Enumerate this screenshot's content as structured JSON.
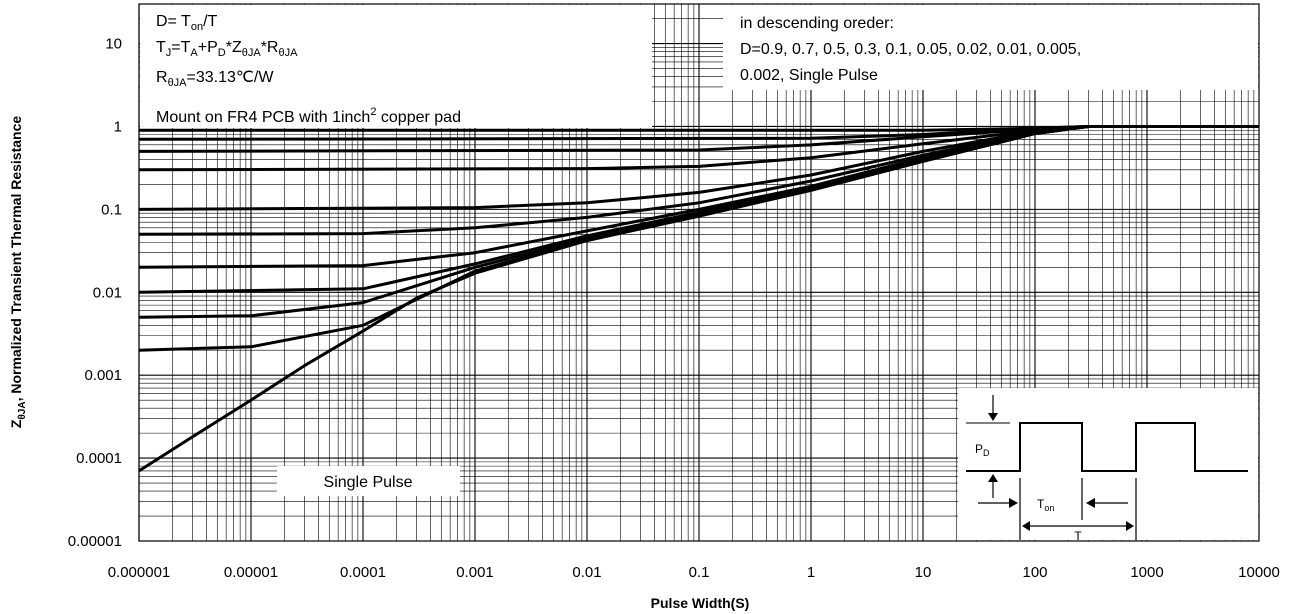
{
  "chart_data": {
    "type": "line",
    "x_scale": "log",
    "y_scale": "log",
    "xlim": [
      1e-06,
      10000
    ],
    "ylim": [
      1e-05,
      30
    ],
    "xlabel": "Pulse Width(S)",
    "ylabel": "ZθJA, Normalized Transient Thermal Resistance",
    "ylabel_main": "Z",
    "ylabel_sub": "θJA",
    "ylabel_rest": ", Normalized Transient Thermal Resistance",
    "grid": true,
    "x_ticks": [
      "0.000001",
      "0.00001",
      "0.0001",
      "0.001",
      "0.01",
      "0.1",
      "1",
      "10",
      "100",
      "1000",
      "10000"
    ],
    "y_ticks": [
      "0.00001",
      "0.0001",
      "0.001",
      "0.01",
      "0.1",
      "1",
      "10"
    ],
    "annotations": {
      "line1_a": "D= T",
      "line1_sub": "on",
      "line1_b": "/T",
      "line2": [
        {
          "t": "T",
          "s": false
        },
        {
          "t": "J",
          "s": true
        },
        {
          "t": "=T",
          "s": false
        },
        {
          "t": "A",
          "s": true
        },
        {
          "t": "+P",
          "s": false
        },
        {
          "t": "D",
          "s": true
        },
        {
          "t": "*Z",
          "s": false
        },
        {
          "t": "θJA",
          "s": true
        },
        {
          "t": "*R",
          "s": false
        },
        {
          "t": "θJA",
          "s": true
        }
      ],
      "line3_a": "R",
      "line3_sub": "θJA",
      "line3_b": "=33.13℃/W",
      "line4_a": "Mount on FR4 PCB with 1inch",
      "line4_sup": "2",
      "line4_b": " copper pad",
      "legend_1": "in descending oreder:",
      "legend_2": "D=0.9, 0.7, 0.5, 0.3, 0.1, 0.05, 0.02, 0.01, 0.005,",
      "legend_3": "0.002, Single Pulse",
      "single_pulse": "Single Pulse"
    },
    "waveform": {
      "pd_main": "P",
      "pd_sub": "D",
      "ton_main": "T",
      "ton_sub": "on",
      "t_label": "T"
    },
    "series": [
      {
        "name": "D=0.9",
        "x": [
          1e-06,
          10,
          100,
          300,
          10000
        ],
        "y": [
          0.9,
          0.9,
          0.95,
          1,
          1
        ]
      },
      {
        "name": "D=0.7",
        "x": [
          1e-06,
          1,
          10,
          100,
          300,
          10000
        ],
        "y": [
          0.7,
          0.72,
          0.8,
          0.95,
          1,
          1
        ]
      },
      {
        "name": "D=0.5",
        "x": [
          1e-06,
          0.1,
          1,
          10,
          100,
          300,
          10000
        ],
        "y": [
          0.5,
          0.52,
          0.6,
          0.75,
          0.93,
          1,
          1
        ]
      },
      {
        "name": "D=0.3",
        "x": [
          1e-06,
          0.01,
          0.1,
          1,
          10,
          100,
          300,
          10000
        ],
        "y": [
          0.3,
          0.31,
          0.33,
          0.42,
          0.62,
          0.9,
          1,
          1
        ]
      },
      {
        "name": "D=0.1",
        "x": [
          1e-06,
          0.001,
          0.01,
          0.1,
          1,
          10,
          100,
          300,
          10000
        ],
        "y": [
          0.1,
          0.105,
          0.12,
          0.16,
          0.26,
          0.5,
          0.88,
          1,
          1
        ]
      },
      {
        "name": "D=0.05",
        "x": [
          1e-06,
          0.0001,
          0.001,
          0.01,
          0.1,
          1,
          10,
          100,
          300,
          10000
        ],
        "y": [
          0.05,
          0.051,
          0.06,
          0.08,
          0.12,
          0.22,
          0.45,
          0.86,
          1,
          1
        ]
      },
      {
        "name": "D=0.02",
        "x": [
          1e-06,
          0.0001,
          0.001,
          0.01,
          0.1,
          1,
          10,
          100,
          300,
          10000
        ],
        "y": [
          0.02,
          0.021,
          0.03,
          0.055,
          0.1,
          0.19,
          0.42,
          0.85,
          1,
          1
        ]
      },
      {
        "name": "D=0.01",
        "x": [
          1e-06,
          0.0001,
          0.001,
          0.01,
          0.1,
          1,
          10,
          100,
          300,
          10000
        ],
        "y": [
          0.01,
          0.011,
          0.022,
          0.048,
          0.092,
          0.18,
          0.4,
          0.84,
          1,
          1
        ]
      },
      {
        "name": "D=0.005",
        "x": [
          1e-06,
          1e-05,
          0.0001,
          0.001,
          0.01,
          0.1,
          1,
          10,
          100,
          300,
          10000
        ],
        "y": [
          0.005,
          0.0052,
          0.0075,
          0.02,
          0.045,
          0.088,
          0.175,
          0.39,
          0.83,
          1,
          1
        ]
      },
      {
        "name": "D=0.002",
        "x": [
          1e-06,
          1e-05,
          0.0001,
          0.001,
          0.01,
          0.1,
          1,
          10,
          100,
          300,
          10000
        ],
        "y": [
          0.002,
          0.0022,
          0.004,
          0.018,
          0.043,
          0.085,
          0.17,
          0.38,
          0.82,
          1,
          1
        ]
      },
      {
        "name": "Single Pulse",
        "x": [
          1e-06,
          3e-06,
          1e-05,
          3e-05,
          0.0001,
          0.0003,
          0.001,
          0.01,
          0.1,
          1,
          10,
          100,
          300,
          10000
        ],
        "y": [
          7e-05,
          0.00018,
          0.0005,
          0.0013,
          0.0034,
          0.0085,
          0.017,
          0.042,
          0.083,
          0.17,
          0.38,
          0.82,
          1,
          1
        ]
      }
    ]
  }
}
